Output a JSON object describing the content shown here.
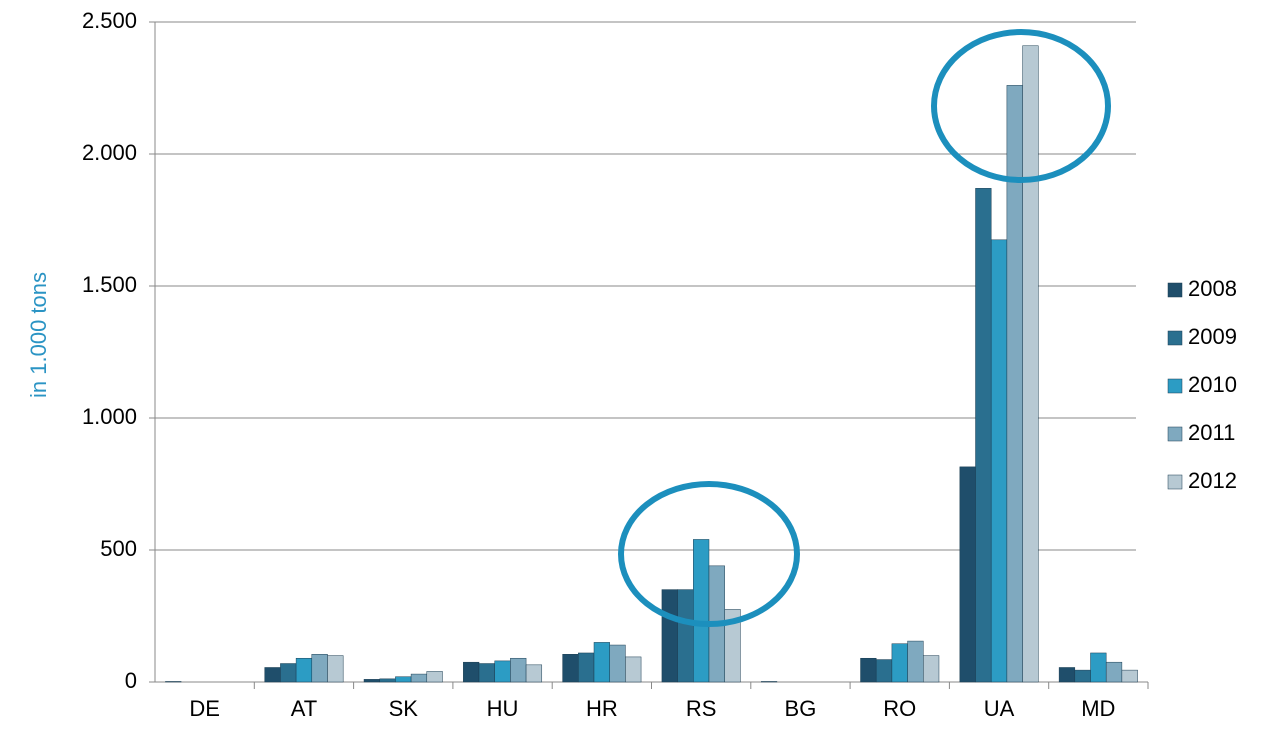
{
  "chart_data": {
    "type": "bar",
    "y_label": "in 1.000 tons",
    "categories": [
      "DE",
      "AT",
      "SK",
      "HU",
      "HR",
      "RS",
      "BG",
      "RO",
      "UA",
      "MD"
    ],
    "series": [
      {
        "name": "2008",
        "color": "#1f4e6b",
        "values": [
          2,
          55,
          10,
          75,
          105,
          350,
          2,
          90,
          815,
          55
        ]
      },
      {
        "name": "2009",
        "color": "#2a6f8f",
        "values": [
          0,
          70,
          12,
          70,
          110,
          350,
          0,
          85,
          1870,
          45
        ]
      },
      {
        "name": "2010",
        "color": "#2c9cc4",
        "values": [
          0,
          90,
          20,
          80,
          150,
          540,
          0,
          145,
          1675,
          110
        ]
      },
      {
        "name": "2011",
        "color": "#7fa9bf",
        "values": [
          0,
          105,
          30,
          90,
          140,
          440,
          0,
          155,
          2260,
          75
        ]
      },
      {
        "name": "2012",
        "color": "#b7c9d3",
        "values": [
          0,
          100,
          40,
          65,
          95,
          275,
          0,
          100,
          2410,
          45
        ]
      }
    ],
    "ylim": [
      0,
      2500
    ],
    "yticks": [
      0,
      500,
      {
        "value": 1000,
        "label": "1.000"
      },
      {
        "value": 1500,
        "label": "1.500"
      },
      {
        "value": 2000,
        "label": "2.000"
      },
      {
        "value": 2500,
        "label": "2.500"
      }
    ],
    "grid": true,
    "legend": "right"
  }
}
